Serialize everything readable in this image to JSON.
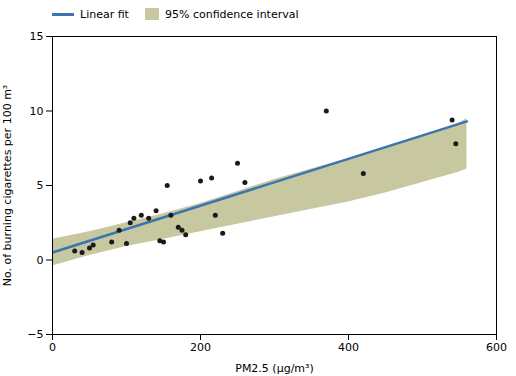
{
  "chart_data": {
    "type": "scatter",
    "xlabel": "PM2.5 (μg/m³)",
    "ylabel": "No. of burning cigarettes per 100 m³",
    "x": [
      30,
      40,
      50,
      55,
      80,
      90,
      100,
      105,
      110,
      120,
      130,
      140,
      145,
      150,
      155,
      160,
      170,
      175,
      180,
      200,
      215,
      220,
      230,
      250,
      260,
      370,
      420,
      540,
      545
    ],
    "values": [
      0.6,
      0.5,
      0.8,
      1.0,
      1.2,
      2.0,
      1.1,
      2.5,
      2.8,
      3.0,
      2.8,
      3.3,
      1.3,
      1.2,
      5.0,
      3.0,
      2.2,
      2.0,
      1.7,
      5.3,
      5.5,
      3.0,
      1.8,
      6.5,
      5.2,
      10.0,
      5.8,
      9.4,
      7.8
    ],
    "color": "#1a1a1a",
    "series": [
      {
        "name": "Linear fit",
        "type": "line",
        "color": "#3a75b0",
        "x": [
          0,
          560
        ],
        "values": [
          0.5,
          9.3
        ]
      },
      {
        "name": "95% confidence interval",
        "type": "area",
        "color": "#c8c8a0",
        "x": [
          0,
          50,
          100,
          150,
          200,
          250,
          300,
          350,
          400,
          450,
          500,
          550,
          560
        ],
        "upper": [
          1.4,
          1.9,
          2.5,
          3.1,
          3.8,
          4.6,
          5.4,
          6.1,
          6.8,
          7.5,
          8.3,
          9.2,
          9.5
        ],
        "lower": [
          -0.4,
          0.3,
          0.9,
          1.4,
          1.9,
          2.4,
          2.9,
          3.4,
          3.9,
          4.5,
          5.2,
          5.9,
          6.1
        ]
      }
    ],
    "xlim": [
      0,
      600
    ],
    "ylim": [
      -5,
      15
    ],
    "xticks": [
      0,
      200,
      400,
      600
    ],
    "yticks": [
      -5,
      0,
      5,
      10,
      15
    ],
    "legend": "upper left",
    "grid": false
  }
}
